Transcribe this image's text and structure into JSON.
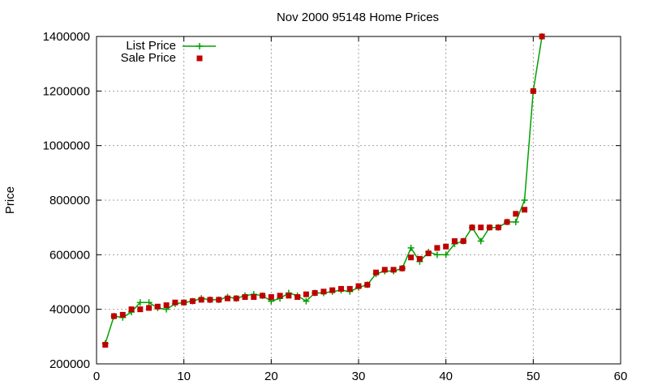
{
  "chart_data": {
    "type": "line",
    "title": "Nov 2000 95148 Home Prices",
    "xlabel": "",
    "ylabel": "Price",
    "xlim": [
      0,
      60
    ],
    "ylim": [
      200000,
      1400000
    ],
    "x_ticks": [
      0,
      10,
      20,
      30,
      40,
      50,
      60
    ],
    "y_ticks": [
      200000,
      400000,
      600000,
      800000,
      1000000,
      1200000,
      1400000
    ],
    "grid": true,
    "legend_position": "top-left",
    "x": [
      1,
      2,
      3,
      4,
      5,
      6,
      7,
      8,
      9,
      10,
      11,
      12,
      13,
      14,
      15,
      16,
      17,
      18,
      19,
      20,
      21,
      22,
      23,
      24,
      25,
      26,
      27,
      28,
      29,
      30,
      31,
      32,
      33,
      34,
      35,
      36,
      37,
      38,
      39,
      40,
      41,
      42,
      43,
      44,
      45,
      46,
      47,
      48,
      49,
      50,
      51
    ],
    "series": [
      {
        "name": "List Price",
        "color": "#00a000",
        "marker": "plus",
        "values": [
          275000,
          375000,
          370000,
          390000,
          425000,
          425000,
          405000,
          400000,
          420000,
          425000,
          430000,
          440000,
          435000,
          435000,
          445000,
          440000,
          450000,
          455000,
          450000,
          430000,
          440000,
          460000,
          450000,
          430000,
          460000,
          460000,
          465000,
          470000,
          465000,
          480000,
          490000,
          530000,
          540000,
          540000,
          550000,
          625000,
          575000,
          610000,
          600000,
          600000,
          640000,
          650000,
          700000,
          650000,
          700000,
          700000,
          720000,
          720000,
          800000,
          1200000,
          1400000
        ]
      },
      {
        "name": "Sale Price",
        "color": "#c00000",
        "marker": "square",
        "values": [
          270000,
          375000,
          380000,
          400000,
          400000,
          405000,
          410000,
          415000,
          425000,
          425000,
          430000,
          435000,
          435000,
          435000,
          440000,
          440000,
          445000,
          445000,
          450000,
          445000,
          450000,
          450000,
          445000,
          455000,
          460000,
          465000,
          470000,
          475000,
          475000,
          485000,
          490000,
          535000,
          545000,
          545000,
          550000,
          590000,
          585000,
          605000,
          625000,
          630000,
          650000,
          650000,
          700000,
          700000,
          700000,
          700000,
          720000,
          750000,
          765000,
          1200000,
          1400000
        ]
      }
    ]
  }
}
